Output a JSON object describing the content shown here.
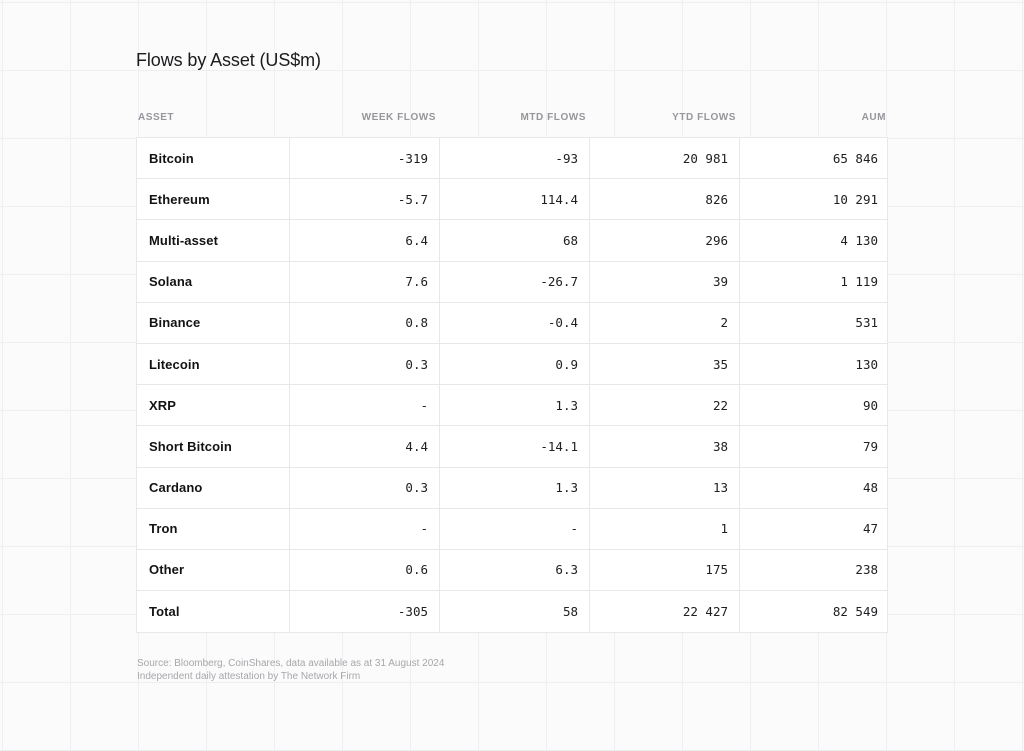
{
  "figure": {
    "title": "Flows by Asset (US$m)"
  },
  "table": {
    "columns": [
      "ASSET",
      "WEEK FLOWS",
      "MTD FLOWS",
      "YTD FLOWS",
      "AUM"
    ],
    "rows": [
      [
        "Bitcoin",
        "-319",
        "-93",
        "20 981",
        "65 846"
      ],
      [
        "Ethereum",
        "-5.7",
        "114.4",
        "826",
        "10 291"
      ],
      [
        "Multi-asset",
        "6.4",
        "68",
        "296",
        "4 130"
      ],
      [
        "Solana",
        "7.6",
        "-26.7",
        "39",
        "1 119"
      ],
      [
        "Binance",
        "0.8",
        "-0.4",
        "2",
        "531"
      ],
      [
        "Litecoin",
        "0.3",
        "0.9",
        "35",
        "130"
      ],
      [
        "XRP",
        "-",
        "1.3",
        "22",
        "90"
      ],
      [
        "Short Bitcoin",
        "4.4",
        "-14.1",
        "38",
        "79"
      ],
      [
        "Cardano",
        "0.3",
        "1.3",
        "13",
        "48"
      ],
      [
        "Tron",
        "-",
        "-",
        "1",
        "47"
      ],
      [
        "Other",
        "0.6",
        "6.3",
        "175",
        "238"
      ],
      [
        "Total",
        "-305",
        "58",
        "22 427",
        "82 549"
      ]
    ]
  },
  "footer": {
    "line1": "Source: Bloomberg, CoinShares, data available as at 31 August 2024",
    "line2": "Independent daily attestation by The Network Firm"
  },
  "colors": {
    "page_bg": "#fbfbfc",
    "grid_line": "#efeef1",
    "table_bg": "#ffffff",
    "table_border": "#e8e7ea",
    "title_text": "#1b1b1d",
    "header_text": "#96969b",
    "asset_text": "#131315",
    "number_text": "#202023",
    "footer_text": "#a7a7ab"
  },
  "chart_data": {
    "type": "table",
    "title": "Flows by Asset (US$m)",
    "columns": [
      "ASSET",
      "WEEK FLOWS",
      "MTD FLOWS",
      "YTD FLOWS",
      "AUM"
    ],
    "rows": [
      {
        "asset": "Bitcoin",
        "week_flows": -319,
        "mtd_flows": -93,
        "ytd_flows": 20981,
        "aum": 65846
      },
      {
        "asset": "Ethereum",
        "week_flows": -5.7,
        "mtd_flows": 114.4,
        "ytd_flows": 826,
        "aum": 10291
      },
      {
        "asset": "Multi-asset",
        "week_flows": 6.4,
        "mtd_flows": 68,
        "ytd_flows": 296,
        "aum": 4130
      },
      {
        "asset": "Solana",
        "week_flows": 7.6,
        "mtd_flows": -26.7,
        "ytd_flows": 39,
        "aum": 1119
      },
      {
        "asset": "Binance",
        "week_flows": 0.8,
        "mtd_flows": -0.4,
        "ytd_flows": 2,
        "aum": 531
      },
      {
        "asset": "Litecoin",
        "week_flows": 0.3,
        "mtd_flows": 0.9,
        "ytd_flows": 35,
        "aum": 130
      },
      {
        "asset": "XRP",
        "week_flows": null,
        "mtd_flows": 1.3,
        "ytd_flows": 22,
        "aum": 90
      },
      {
        "asset": "Short Bitcoin",
        "week_flows": 4.4,
        "mtd_flows": -14.1,
        "ytd_flows": 38,
        "aum": 79
      },
      {
        "asset": "Cardano",
        "week_flows": 0.3,
        "mtd_flows": 1.3,
        "ytd_flows": 13,
        "aum": 48
      },
      {
        "asset": "Tron",
        "week_flows": null,
        "mtd_flows": null,
        "ytd_flows": 1,
        "aum": 47
      },
      {
        "asset": "Other",
        "week_flows": 0.6,
        "mtd_flows": 6.3,
        "ytd_flows": 175,
        "aum": 238
      },
      {
        "asset": "Total",
        "week_flows": -305,
        "mtd_flows": 58,
        "ytd_flows": 22427,
        "aum": 82549
      }
    ],
    "notes": "null means value shown as a dash (-). Units: US$m. Numbers displayed with space thousands separator."
  }
}
